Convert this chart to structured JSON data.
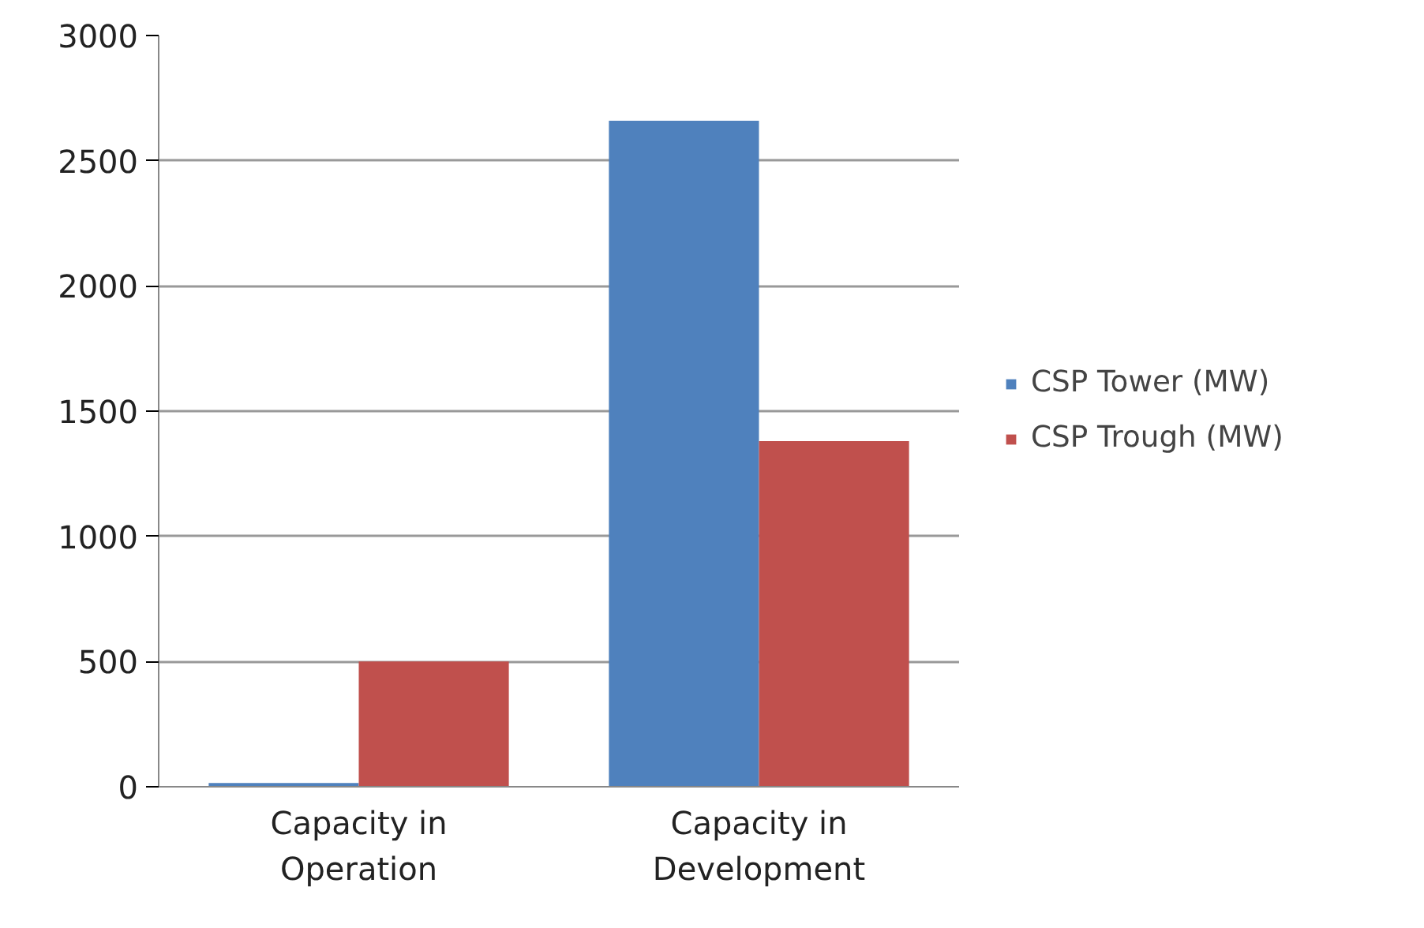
{
  "chart_data": {
    "type": "bar",
    "categories": [
      "Capacity in Operation",
      "Capacity in Development"
    ],
    "series": [
      {
        "name": "CSP Tower (MW)",
        "color": "#4f81bd",
        "values": [
          15,
          2660
        ]
      },
      {
        "name": "CSP Trough (MW)",
        "color": "#c0504d",
        "values": [
          500,
          1380
        ]
      }
    ],
    "ylim": [
      0,
      3000
    ],
    "yticks": [
      0,
      500,
      1000,
      1500,
      2000,
      2500,
      3000
    ],
    "grid": "y",
    "legend": "right"
  }
}
